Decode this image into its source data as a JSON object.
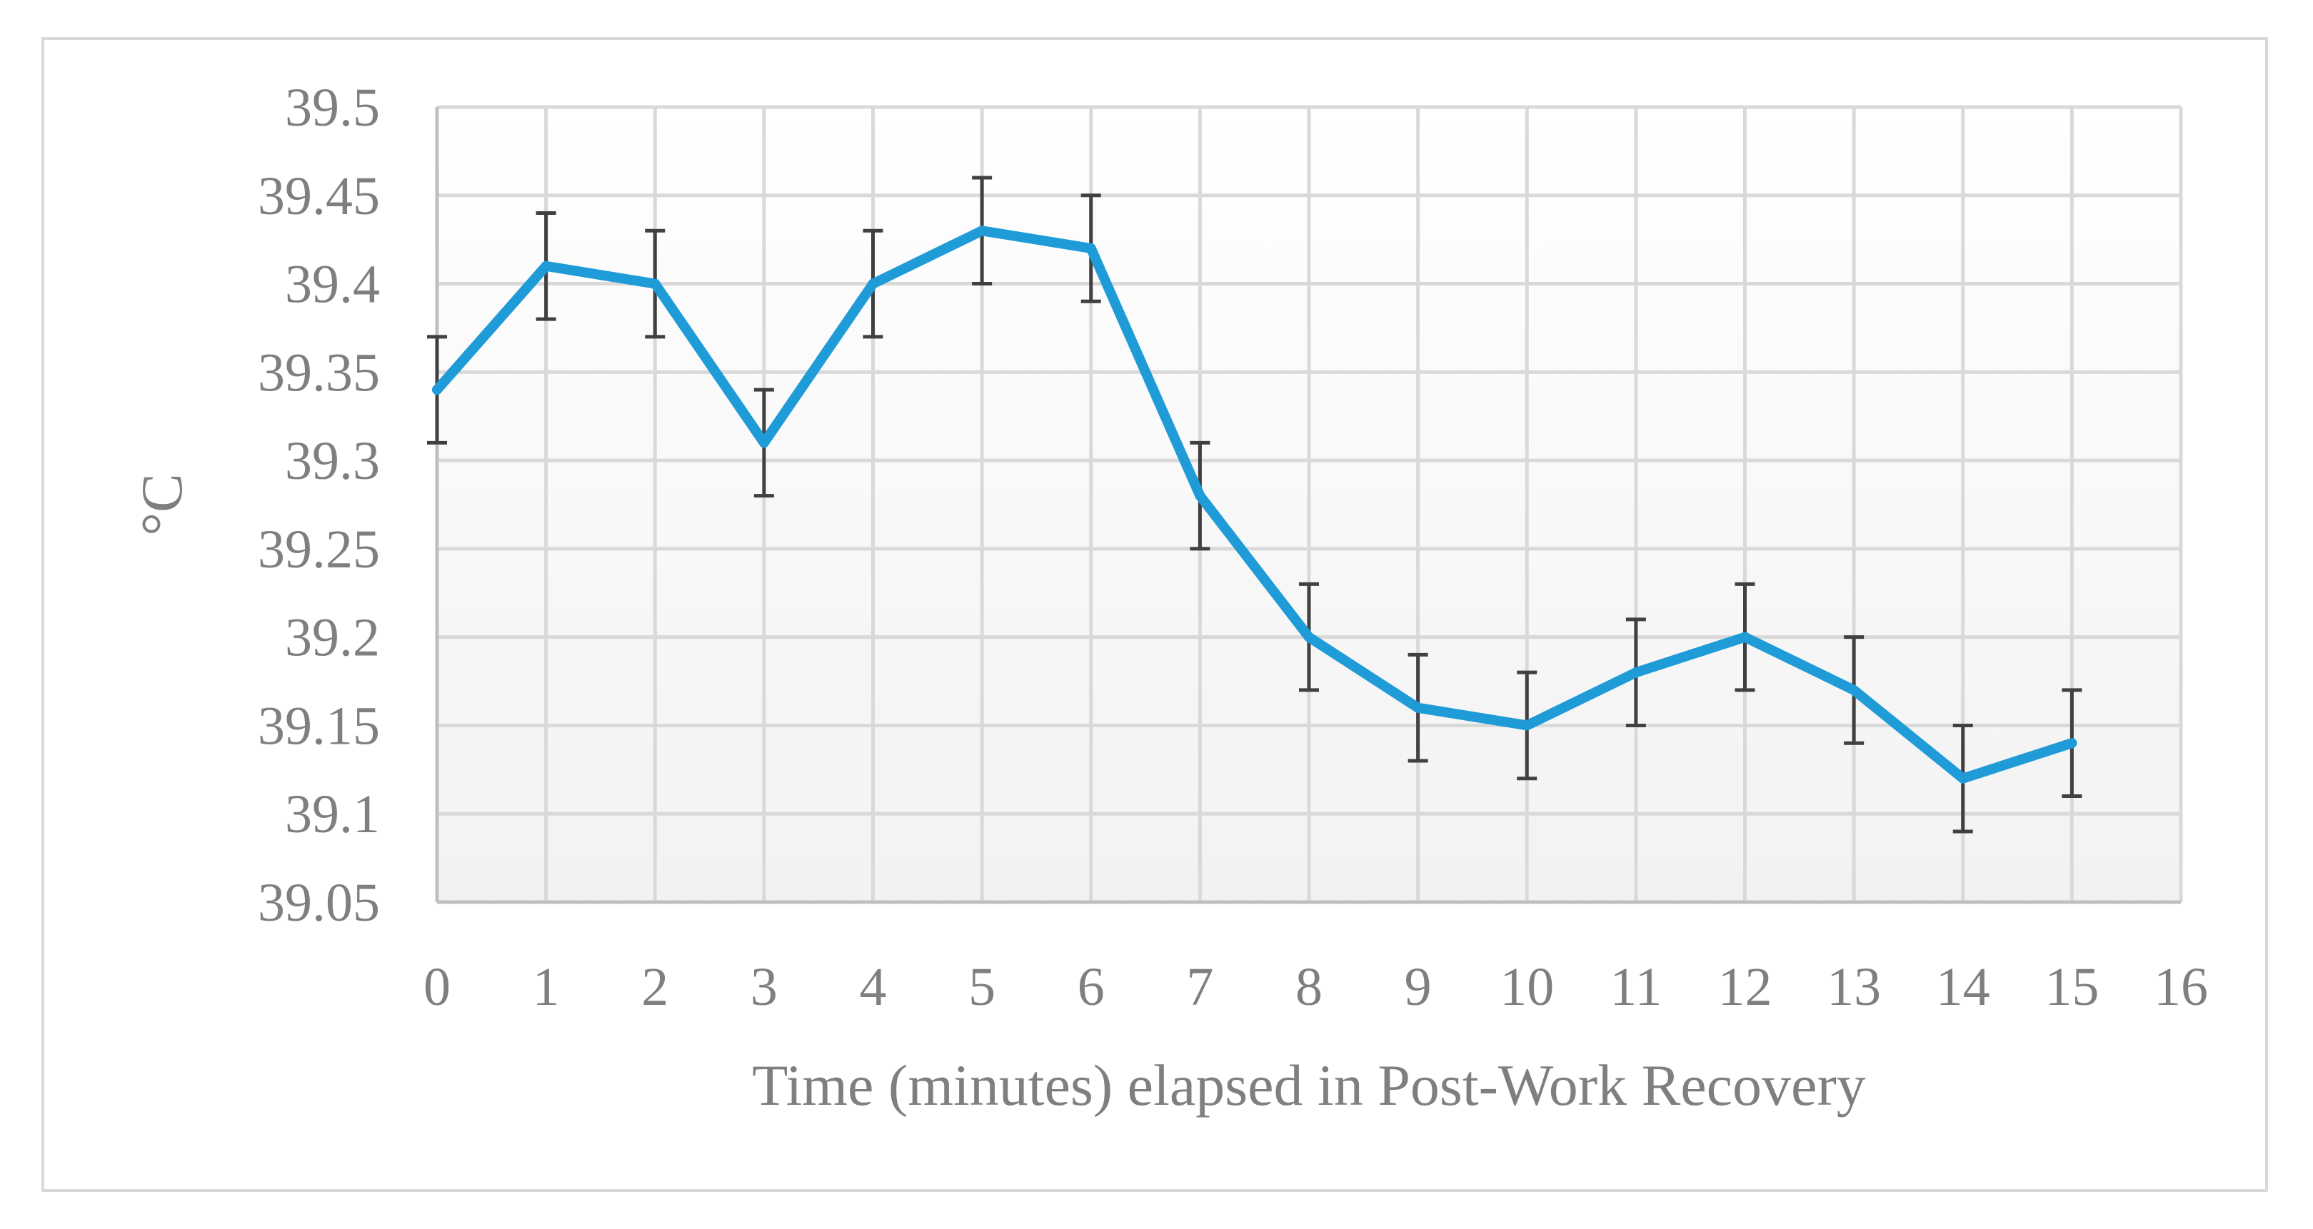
{
  "chart_data": {
    "type": "line",
    "title": "",
    "xlabel": "Time (minutes) elapsed in Post-Work Recovery",
    "ylabel": "°C",
    "xlim": [
      0,
      16
    ],
    "ylim": [
      39.05,
      39.5
    ],
    "x_ticks": [
      "0",
      "1",
      "2",
      "3",
      "4",
      "5",
      "6",
      "7",
      "8",
      "9",
      "10",
      "11",
      "12",
      "13",
      "14",
      "15",
      "16"
    ],
    "y_ticks": [
      "39.05",
      "39.1",
      "39.15",
      "39.2",
      "39.25",
      "39.3",
      "39.35",
      "39.4",
      "39.45",
      "39.5"
    ],
    "grid": true,
    "legend": "none",
    "series": [
      {
        "x": [
          0,
          1,
          2,
          3,
          4,
          5,
          6,
          7,
          8,
          9,
          10,
          11,
          12,
          13,
          14,
          15
        ],
        "values": [
          39.34,
          39.41,
          39.4,
          39.31,
          39.4,
          39.43,
          39.42,
          39.28,
          39.2,
          39.16,
          39.15,
          39.18,
          39.2,
          39.17,
          39.12,
          39.14
        ],
        "error": [
          0.03,
          0.03,
          0.03,
          0.03,
          0.03,
          0.03,
          0.03,
          0.03,
          0.03,
          0.03,
          0.03,
          0.03,
          0.03,
          0.03,
          0.03,
          0.03
        ],
        "color": "#1f9bd7"
      }
    ]
  }
}
